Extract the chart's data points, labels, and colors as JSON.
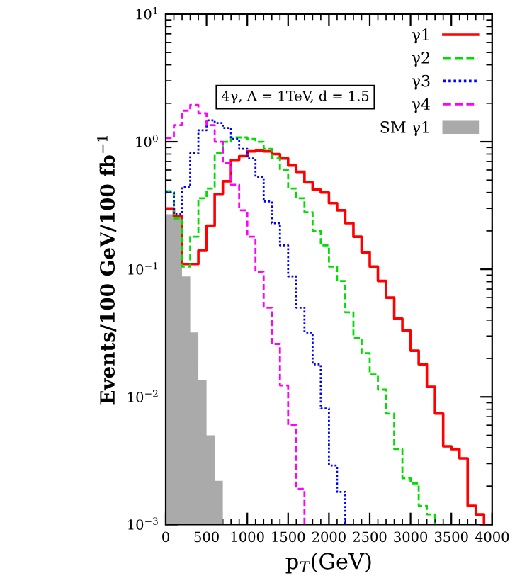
{
  "chart_data": {
    "type": "histogram",
    "annotations": [
      "4γ, Λ = 1TeV, d = 1.5"
    ],
    "xlabel": "p$_{T}$(GeV)",
    "ylabel": "Events/100 GeV/100 fb$^{−1}$",
    "bins": [
      0,
      100,
      200,
      300,
      400,
      500,
      600,
      700
    ],
    "series": [
      {
        "name": "γ1",
        "type": "step",
        "color": "#ff0000",
        "line_style": "solid",
        "x": [
          0,
          100,
          200,
          300,
          400,
          500,
          600,
          700,
          800,
          900,
          1000,
          1100,
          1200,
          1300,
          1400,
          1500,
          1600,
          1700,
          1800,
          1900,
          2000,
          2100,
          2200,
          2300,
          2400,
          2500,
          2600,
          2700,
          2800,
          2900,
          3000,
          3100,
          3200,
          3300,
          3400,
          3500,
          3600,
          3700,
          3800,
          3900
        ],
        "values": [
          0.3,
          0.26,
          0.11,
          0.11,
          0.14,
          0.22,
          0.39,
          0.49,
          0.72,
          0.77,
          0.84,
          0.85,
          0.84,
          0.8,
          0.74,
          0.65,
          0.58,
          0.48,
          0.42,
          0.4,
          0.33,
          0.29,
          0.23,
          0.18,
          0.136,
          0.105,
          0.081,
          0.06,
          0.041,
          0.033,
          0.023,
          0.018,
          0.012,
          0.0074,
          0.0041,
          0.0039,
          0.0033,
          0.0014,
          0.0012,
          0.001
        ]
      },
      {
        "name": "γ2",
        "type": "step",
        "color": "#00dd00",
        "line_style": "dashed",
        "x": [
          0,
          100,
          200,
          300,
          400,
          500,
          600,
          700,
          800,
          900,
          1000,
          1100,
          1200,
          1300,
          1400,
          1500,
          1600,
          1700,
          1800,
          1900,
          2000,
          2100,
          2200,
          2300,
          2400,
          2500,
          2600,
          2700,
          2800,
          2900,
          3000,
          3100,
          3200,
          3300
        ],
        "values": [
          0.41,
          0.25,
          0.105,
          0.18,
          0.36,
          0.43,
          0.81,
          1.0,
          1.08,
          1.08,
          1.05,
          1.0,
          0.88,
          0.74,
          0.6,
          0.43,
          0.36,
          0.28,
          0.2,
          0.154,
          0.105,
          0.081,
          0.046,
          0.029,
          0.022,
          0.015,
          0.0114,
          0.0074,
          0.0039,
          0.0023,
          0.0021,
          0.0014,
          0.0012,
          0.001
        ]
      },
      {
        "name": "γ3",
        "type": "step",
        "color": "#0000ff",
        "line_style": "dotted",
        "x": [
          0,
          100,
          200,
          300,
          400,
          500,
          600,
          700,
          800,
          900,
          1000,
          1100,
          1200,
          1300,
          1400,
          1500,
          1600,
          1700,
          1800,
          1900,
          2000,
          2100,
          2200
        ],
        "values": [
          0.4,
          0.27,
          0.44,
          0.81,
          1.23,
          1.47,
          1.4,
          1.28,
          1.05,
          0.88,
          0.74,
          0.53,
          0.34,
          0.23,
          0.154,
          0.088,
          0.05,
          0.032,
          0.018,
          0.0081,
          0.0029,
          0.0018,
          0.001
        ]
      },
      {
        "name": "γ4",
        "type": "step",
        "color": "#ff00ff",
        "line_style": "dashed",
        "x": [
          0,
          100,
          200,
          300,
          400,
          500,
          600,
          700,
          800,
          900,
          1000,
          1100,
          1200,
          1300,
          1400,
          1500,
          1600,
          1700
        ],
        "values": [
          1.07,
          1.35,
          1.75,
          1.94,
          1.67,
          1.35,
          1.0,
          0.68,
          0.46,
          0.29,
          0.18,
          0.095,
          0.05,
          0.026,
          0.0123,
          0.006,
          0.0019,
          0.001
        ]
      },
      {
        "name": "SM γ1",
        "type": "histogram",
        "color": "#aaaaaa",
        "values": [
          0.27,
          0.26,
          0.088,
          0.032,
          0.0136,
          0.005,
          0.0022
        ]
      }
    ],
    "log": "y",
    "xlim": [
      0,
      4000
    ],
    "xticks": [
      0,
      500,
      1000,
      1500,
      2000,
      2500,
      3000,
      3500,
      4000
    ],
    "ylim": [
      0.001,
      10
    ],
    "yticks": [
      {
        "value": 0.001,
        "label": "10$^{−3}$"
      },
      {
        "value": 0.01,
        "label": "10$^{−2}$"
      },
      {
        "value": 0.1,
        "label": "10$^{−1}$"
      },
      {
        "value": 1,
        "label": "10$^{0}$"
      },
      {
        "value": 10,
        "label": "10$^{1}$"
      }
    ],
    "legend": "top right",
    "grid": false
  }
}
